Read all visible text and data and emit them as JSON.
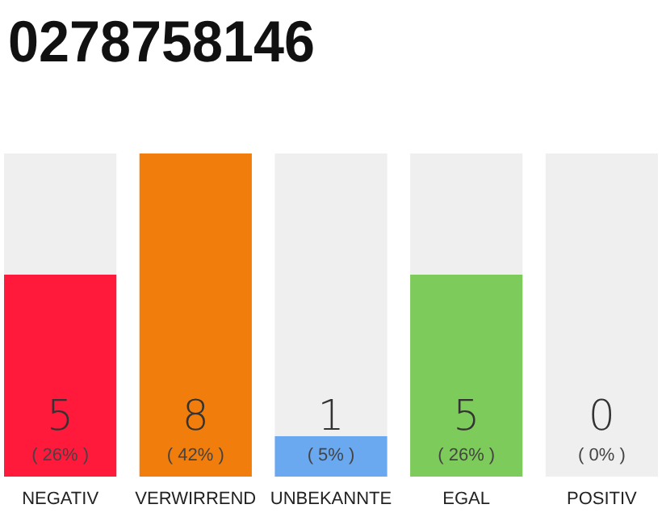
{
  "chart_data": {
    "type": "bar",
    "title": "0278758146",
    "categories": [
      "NEGATIV",
      "VERWIRREND",
      "UNBEKANNTE",
      "EGAL",
      "POSITIV"
    ],
    "stacked": true,
    "series": [
      {
        "colors": [
          "#ff1a3c",
          "#f07d0c",
          "#6aa8f0",
          "#7dcb5a",
          "#dcdcdc"
        ],
        "values": [
          5,
          8,
          1,
          5,
          0
        ],
        "value_labels": [
          "5",
          "8",
          "1",
          "5",
          null
        ]
      },
      {
        "color": "#efefef",
        "values": [
          3,
          0,
          7,
          3,
          8
        ]
      }
    ],
    "annotations": [
      "( 26% )",
      "( 42% )",
      "( 5% )",
      "( 26% )",
      "( 0% )",
      {
        "text": "0",
        "x": "POSITIV",
        "y": 0
      }
    ]
  }
}
